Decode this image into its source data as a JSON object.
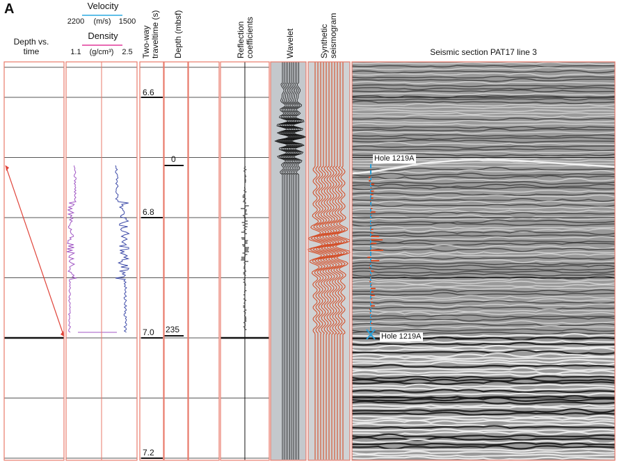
{
  "panel_label": "A",
  "columns": {
    "depth_vs_time": "Depth vs.\ntime",
    "velocity": {
      "title": "Velocity",
      "left": "2200",
      "unit": "(m/s)",
      "right": "1500"
    },
    "density": {
      "title": "Density",
      "left": "1.1",
      "unit": "(g/cm³)",
      "right": "2.5"
    },
    "twt": "Two-way\ntraveltime (s)",
    "depth": "Depth (mbsf)",
    "reflection": "Reflection\ncoefficients",
    "wavelet": "Wavelet",
    "synthetic": "Synthetic\nseismogram",
    "seismic": "Seismic section PAT17 line 3"
  },
  "twt_ticks": [
    {
      "label": "6.6",
      "value": 6.6
    },
    {
      "label": "6.8",
      "value": 6.8
    },
    {
      "label": "7.0",
      "value": 7.0
    },
    {
      "label": "7.2",
      "value": 7.2
    }
  ],
  "depth_ticks": [
    {
      "label": "0",
      "value": 0
    },
    {
      "label": "235",
      "value": 235
    }
  ],
  "hole_labels": {
    "top": "Hole 1219A",
    "bottom": "Hole 1219A"
  },
  "colors": {
    "velocity": "#29a9e0",
    "density": "#e0389a",
    "velocity_log": "#3c4aa8",
    "density_log": "#a056c4",
    "frame": "#e87a6a",
    "synthetic": "#d4502a",
    "wavelet_bg": "#c4c8cc",
    "hole_marker": "#2a9fd8"
  }
}
